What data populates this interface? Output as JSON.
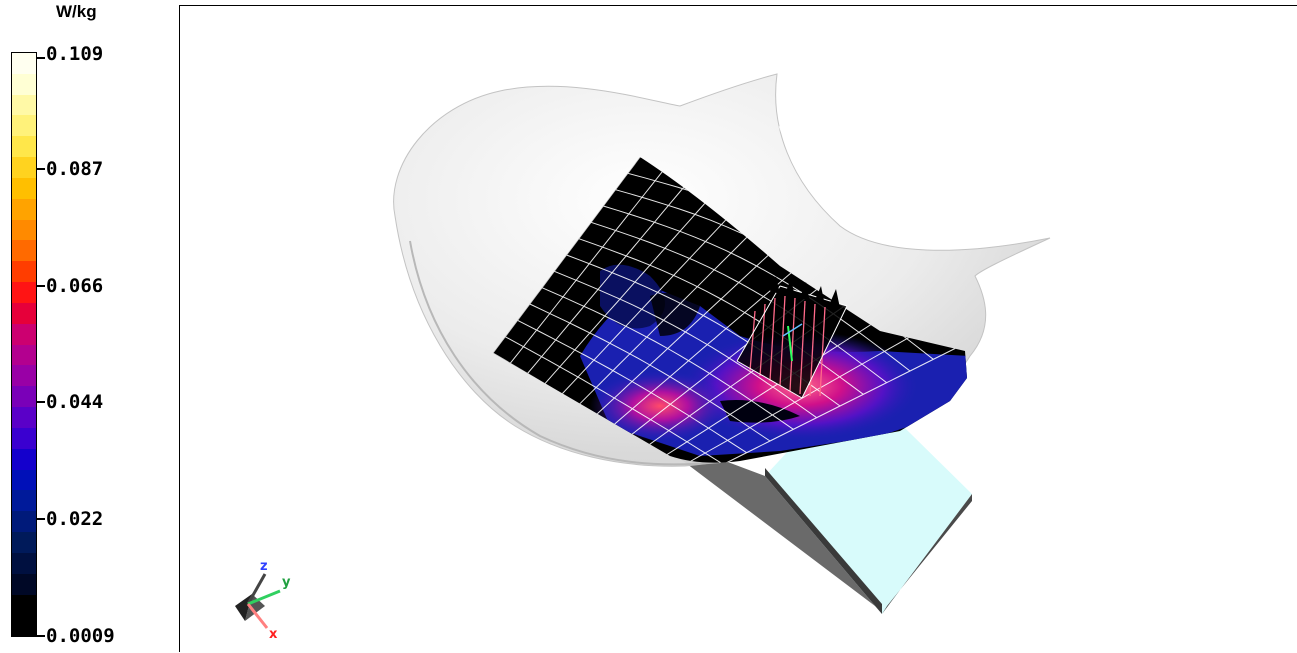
{
  "legend": {
    "unit": "W/kg",
    "ticks": [
      "0.109",
      "0.087",
      "0.066",
      "0.044",
      "0.022",
      "0.0009"
    ],
    "colors": [
      "#fffff0",
      "#ffffd4",
      "#fff9a6",
      "#fff27a",
      "#ffe74a",
      "#ffd31f",
      "#ffbf00",
      "#ffa300",
      "#ff8a00",
      "#ff6a00",
      "#ff3d00",
      "#ff1414",
      "#e6003a",
      "#cc0070",
      "#b3008f",
      "#9900a6",
      "#7a00b8",
      "#5a00c8",
      "#3a00d0",
      "#1400cc",
      "#0010b8",
      "#001a9a",
      "#001a7a",
      "#001a5a",
      "#001040",
      "#000826",
      "#000000",
      "#000000"
    ]
  },
  "axes": {
    "x": "x",
    "y": "y",
    "z": "z"
  },
  "colors": {
    "head_surface": "#e6e6e6",
    "phone_top": "#d8fbfb",
    "phone_side": "#4a4a4a",
    "grid_line": "#ffffff",
    "sar_high": "#ff3a6e",
    "sar_mid": "#6a10d0",
    "sar_low": "#1a20b0"
  }
}
